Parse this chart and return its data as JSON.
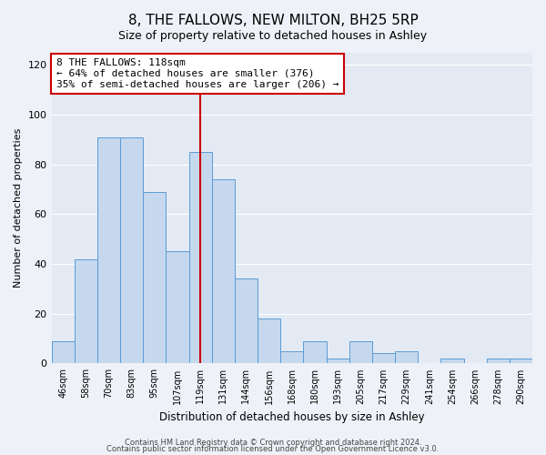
{
  "title": "8, THE FALLOWS, NEW MILTON, BH25 5RP",
  "subtitle": "Size of property relative to detached houses in Ashley",
  "xlabel": "Distribution of detached houses by size in Ashley",
  "ylabel": "Number of detached properties",
  "categories": [
    "46sqm",
    "58sqm",
    "70sqm",
    "83sqm",
    "95sqm",
    "107sqm",
    "119sqm",
    "131sqm",
    "144sqm",
    "156sqm",
    "168sqm",
    "180sqm",
    "193sqm",
    "205sqm",
    "217sqm",
    "229sqm",
    "241sqm",
    "254sqm",
    "266sqm",
    "278sqm",
    "290sqm"
  ],
  "values": [
    9,
    42,
    91,
    91,
    69,
    45,
    85,
    74,
    34,
    18,
    5,
    9,
    2,
    9,
    4,
    5,
    0,
    2,
    0,
    2,
    2
  ],
  "bar_color": "#c5d8ed",
  "bar_edge_color": "#5b9bd5",
  "highlight_index": 6,
  "highlight_color_line": "#cc0000",
  "annotation_text": "8 THE FALLOWS: 118sqm\n← 64% of detached houses are smaller (376)\n35% of semi-detached houses are larger (206) →",
  "annotation_box_color": "#ffffff",
  "annotation_box_edge": "#cc0000",
  "ylim": [
    0,
    125
  ],
  "yticks": [
    0,
    20,
    40,
    60,
    80,
    100,
    120
  ],
  "footer1": "Contains HM Land Registry data © Crown copyright and database right 2024.",
  "footer2": "Contains public sector information licensed under the Open Government Licence v3.0.",
  "background_color": "#eef2f8",
  "plot_background": "#e4eaf4",
  "grid_color": "#ffffff",
  "title_fontsize": 11,
  "subtitle_fontsize": 9,
  "annotation_fontsize": 8
}
